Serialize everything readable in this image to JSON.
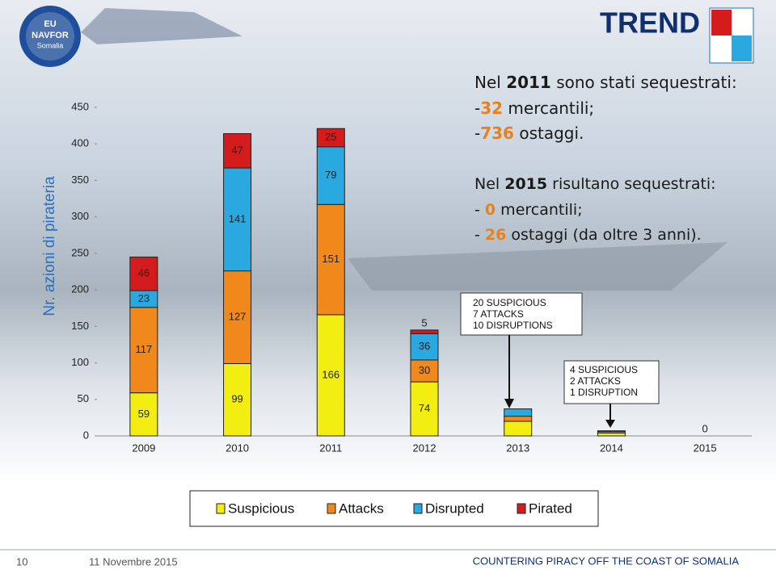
{
  "header": {
    "title": "TREND",
    "logo": [
      "EU",
      "NAVFOR",
      "Somalia"
    ]
  },
  "notes": [
    [
      [
        "Nel ",
        "2011",
        " sono stati sequestrati:"
      ],
      [
        "-",
        "32",
        " mercantili;"
      ],
      [
        "-",
        "736",
        " ostaggi."
      ]
    ],
    [
      [
        "Nel ",
        "2015",
        " risultano sequestrati:"
      ],
      [
        "- ",
        "0",
        " mercantili;"
      ],
      [
        "- ",
        "26",
        " ostaggi (da oltre 3 anni)."
      ]
    ]
  ],
  "callouts": [
    [
      "20 SUSPICIOUS",
      "7 ATTACKS",
      "10 DISRUPTIONS"
    ],
    [
      "4 SUSPICIOUS",
      "2 ATTACKS",
      "1 DISRUPTION"
    ]
  ],
  "chart_data": {
    "type": "bar",
    "stacked": true,
    "ylabel": "Nr. azioni di pirateria",
    "categories": [
      "2009",
      "2010",
      "2011",
      "2012",
      "2013",
      "2014",
      "2015"
    ],
    "ylim": [
      0,
      450
    ],
    "yticks": [
      0,
      50,
      100,
      150,
      200,
      250,
      300,
      350,
      400,
      450
    ],
    "series": [
      {
        "name": "Suspicious",
        "color": "#f2ee12",
        "values": [
          59,
          99,
          166,
          74,
          20,
          4,
          0
        ],
        "value_labels": [
          "59",
          "99",
          "166",
          "74",
          null,
          null,
          "0"
        ]
      },
      {
        "name": "Attacks",
        "color": "#f0881c",
        "values": [
          117,
          127,
          151,
          30,
          7,
          2,
          0
        ],
        "value_labels": [
          "117",
          "127",
          "151",
          "30",
          null,
          null,
          null
        ]
      },
      {
        "name": "Disrupted",
        "color": "#2aa8e0",
        "values": [
          23,
          141,
          79,
          36,
          10,
          1,
          0
        ],
        "value_labels": [
          "23",
          "141",
          "79",
          "36",
          null,
          null,
          null
        ]
      },
      {
        "name": "Pirated",
        "color": "#d41c1c",
        "values": [
          46,
          47,
          25,
          5,
          0,
          0,
          0
        ],
        "value_labels": [
          "46",
          "47",
          "25",
          "5",
          null,
          null,
          null
        ]
      }
    ]
  },
  "footer": {
    "page": "10",
    "date": "11 Novembre 2015",
    "text": "COUNTERING PIRACY OFF THE COAST OF SOMALIA"
  }
}
